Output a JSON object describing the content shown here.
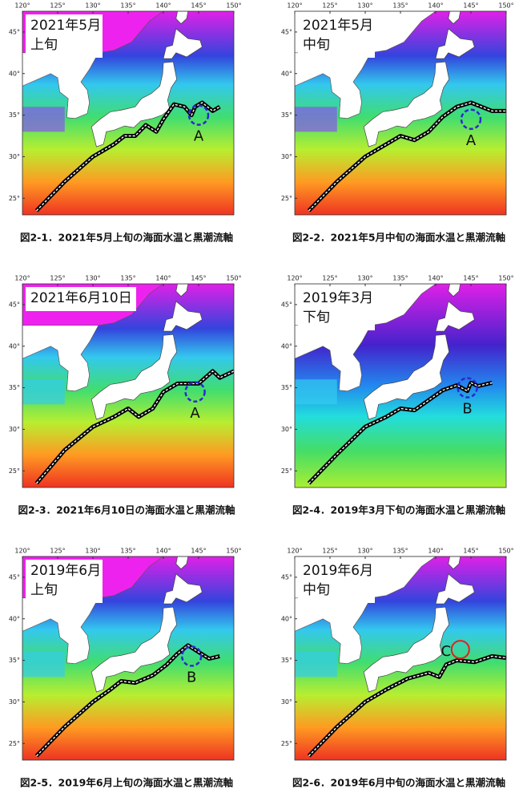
{
  "lon_ticks": [
    "120°",
    "125°",
    "130°",
    "135°",
    "140°",
    "145°",
    "150°"
  ],
  "lat_ticks": [
    "45°",
    "40°",
    "35°",
    "30°",
    "25°"
  ],
  "panels": [
    {
      "title": [
        "2021年5月",
        "上旬"
      ],
      "caption": "図2-1．2021年5月上旬の海面水温と黒潮流軸",
      "marker": {
        "letter": "A",
        "color": "#2a2ad0"
      }
    },
    {
      "title": [
        "2021年5月",
        "中旬"
      ],
      "caption": "図2-2．2021年5月中旬の海面水温と黒潮流軸",
      "marker": {
        "letter": "A",
        "color": "#2a2ad0"
      }
    },
    {
      "title": [
        "2021年6月10日"
      ],
      "caption": "図2-3．2021年6月10日の海面水温と黒潮流軸",
      "marker": {
        "letter": "A",
        "color": "#2a2ad0"
      }
    },
    {
      "title": [
        "2019年3月",
        "下旬"
      ],
      "caption": "図2-4．2019年3月下旬の海面水温と黒潮流軸",
      "marker": {
        "letter": "B",
        "color": "#2a2ad0"
      }
    },
    {
      "title": [
        "2019年6月",
        "上旬"
      ],
      "caption": "図2-5．2019年6月上旬の海面水温と黒潮流軸",
      "marker": {
        "letter": "B",
        "color": "#2a2ad0"
      }
    },
    {
      "title": [
        "2019年6月",
        "中旬"
      ],
      "caption": "図2-6．2019年6月中旬の海面水温と黒潮流軸",
      "marker": {
        "letter": "C",
        "color": "#e02020"
      }
    }
  ]
}
